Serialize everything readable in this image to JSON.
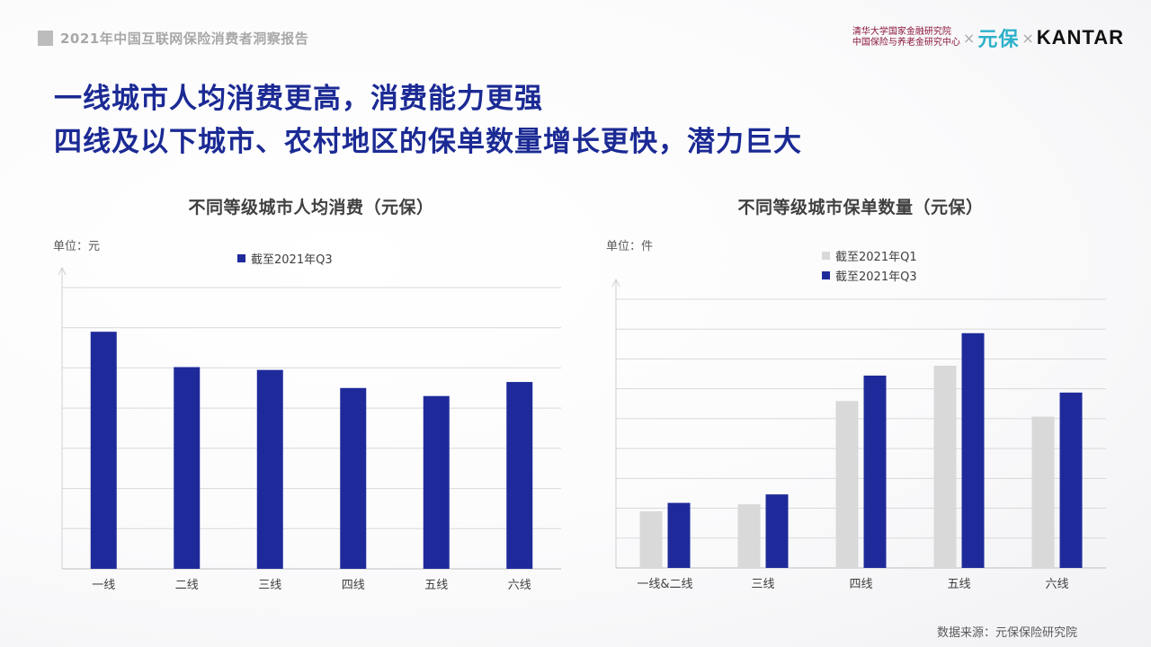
{
  "report_title": "2021年中国互联网保险消费者洞察报告",
  "logos": {
    "institute_line1": "清华大学国家金融研究院",
    "institute_line2": "中国保险与养老金研究中心",
    "times": "×",
    "yuanbao": "元保",
    "kantar": "KANTAR"
  },
  "headline": {
    "line1": "一线城市人均消费更高，消费能力更强",
    "line2": "四线及以下城市、农村地区的保单数量增长更快，潜力巨大"
  },
  "colors": {
    "q1": "#d9d9d9",
    "q3": "#1f2a9a",
    "headline": "#1b2a94"
  },
  "source": "数据来源：元保保险研究院",
  "chart_data": [
    {
      "type": "bar",
      "title": "不同等级城市人均消费（元保）",
      "unit_label": "单位：元",
      "categories": [
        "一线",
        "二线",
        "三线",
        "四线",
        "五线",
        "六线"
      ],
      "series": [
        {
          "name": "截至2021年Q3",
          "values": [
            5.9,
            5.02,
            4.95,
            4.5,
            4.3,
            4.65
          ]
        }
      ],
      "ylim": [
        0,
        7
      ],
      "grid": true,
      "gridlines": 7,
      "legend_position": "top-center"
    },
    {
      "type": "bar",
      "title": "不同等级城市保单数量（元保）",
      "unit_label": "单位：件",
      "categories": [
        "一线&二线",
        "三线",
        "四线",
        "五线",
        "六线"
      ],
      "series": [
        {
          "name": "截至2021年Q1",
          "values": [
            2.0,
            2.25,
            5.9,
            7.15,
            5.35
          ]
        },
        {
          "name": "截至2021年Q3",
          "values": [
            2.3,
            2.6,
            6.8,
            8.3,
            6.2
          ]
        }
      ],
      "ylim": [
        0,
        9.5
      ],
      "grid": true,
      "gridlines": 9,
      "legend_position": "top-left"
    }
  ]
}
